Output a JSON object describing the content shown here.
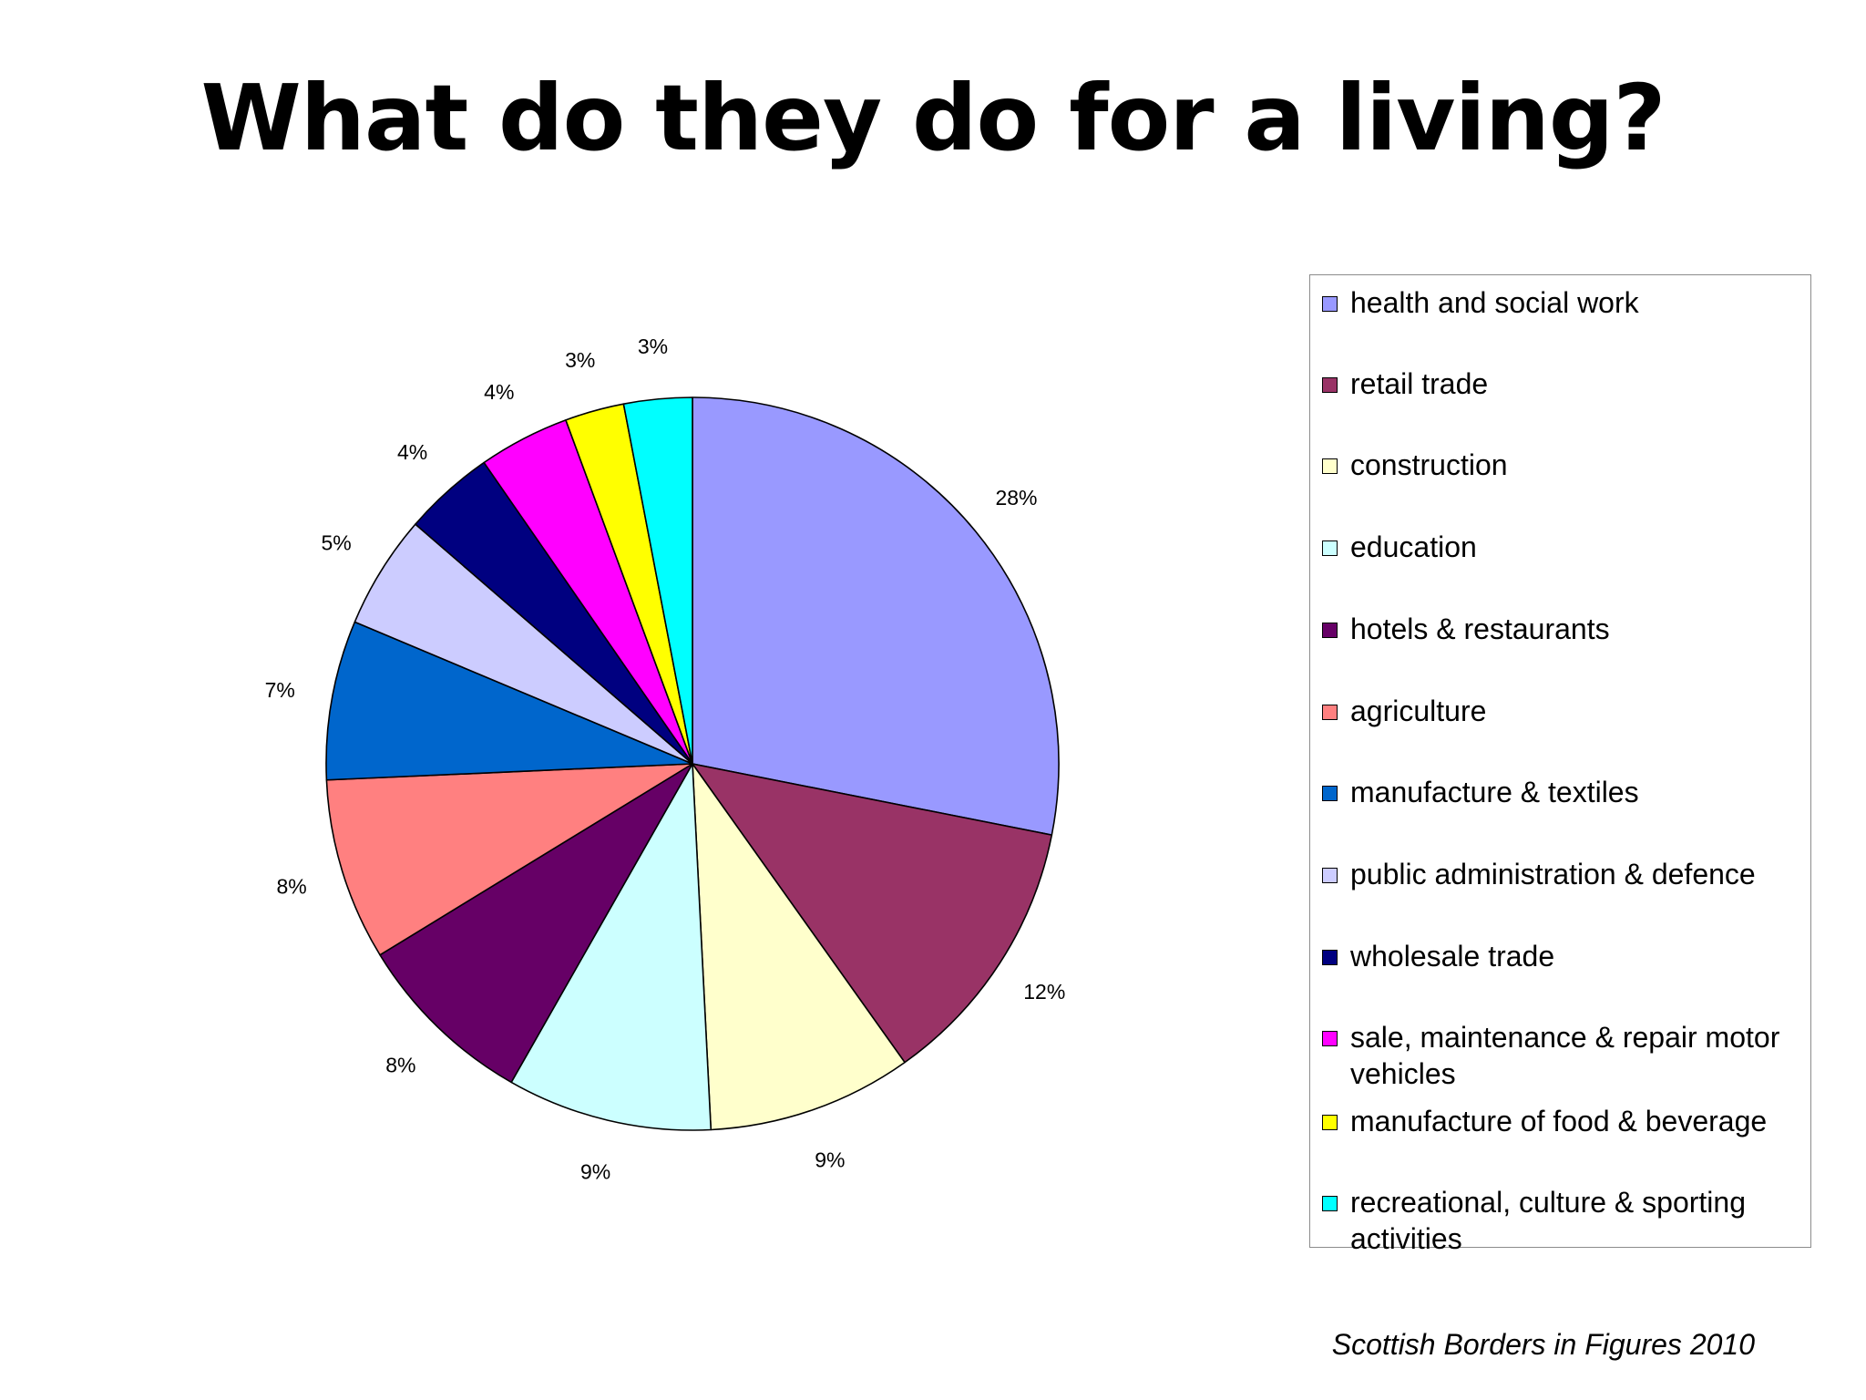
{
  "page": {
    "title": "What do they do for a living?",
    "source": "Scottish Borders in Figures 2010"
  },
  "chart_data": {
    "type": "pie",
    "title": "",
    "slices": [
      {
        "label": "health and social work",
        "value": 28,
        "value_label": "28%",
        "color": "#9999FF"
      },
      {
        "label": "retail trade",
        "value": 12,
        "value_label": "12%",
        "color": "#993366"
      },
      {
        "label": "construction",
        "value": 9,
        "value_label": "9%",
        "color": "#FFFFCC"
      },
      {
        "label": "education",
        "value": 9,
        "value_label": "9%",
        "color": "#CCFFFF"
      },
      {
        "label": "hotels & restaurants",
        "value": 8,
        "value_label": "8%",
        "color": "#660066"
      },
      {
        "label": "agriculture",
        "value": 8,
        "value_label": "8%",
        "color": "#FF8080"
      },
      {
        "label": "manufacture & textiles",
        "value": 7,
        "value_label": "7%",
        "color": "#0066CC"
      },
      {
        "label": "public administration & defence",
        "value": 5,
        "value_label": "5%",
        "color": "#CCCCFF"
      },
      {
        "label": "wholesale trade",
        "value": 4,
        "value_label": "4%",
        "color": "#000080"
      },
      {
        "label": "sale, maintenance & repair motor vehicles",
        "value": 4,
        "value_label": "4%",
        "color": "#FF00FF"
      },
      {
        "label": "manufacture of food & beverage",
        "value": 2.6,
        "value_label": "3%",
        "color": "#FFFF00"
      },
      {
        "label": "recreational, culture & sporting activities",
        "value": 3,
        "value_label": "3%",
        "color": "#00FFFF"
      }
    ],
    "legend_position": "right",
    "start": "12 o'clock",
    "direction": "clockwise"
  }
}
